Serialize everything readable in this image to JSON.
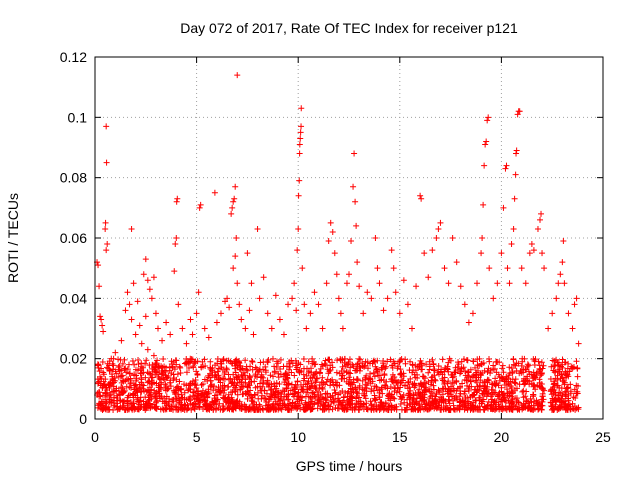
{
  "chart_data": {
    "type": "scatter",
    "title": "Day 072 of 2017, Rate Of TEC Index for receiver p121",
    "xlabel": "GPS time / hours",
    "ylabel": "ROTI / TECUs",
    "xlim": [
      0,
      25
    ],
    "ylim": [
      0,
      0.12
    ],
    "x_ticks": [
      0,
      5,
      10,
      15,
      20,
      25
    ],
    "x_tick_labels": [
      "0",
      "5",
      "10",
      "15",
      "20",
      "25"
    ],
    "y_ticks": [
      0,
      0.02,
      0.04,
      0.06,
      0.08,
      0.1,
      0.12
    ],
    "y_tick_labels": [
      "0",
      "0.02",
      "0.04",
      "0.06",
      "0.08",
      "0.1",
      "0.12"
    ],
    "grid": true,
    "legend": "none",
    "marker": "plus",
    "color": "#ff0000",
    "baseline_band": {
      "x_range": [
        0.1,
        23.8
      ],
      "y_range": [
        0.003,
        0.02
      ]
    },
    "points": [
      [
        0.1,
        0.052
      ],
      [
        0.15,
        0.051
      ],
      [
        0.2,
        0.044
      ],
      [
        0.25,
        0.034
      ],
      [
        0.3,
        0.033
      ],
      [
        0.35,
        0.031
      ],
      [
        0.4,
        0.029
      ],
      [
        0.5,
        0.063
      ],
      [
        0.52,
        0.065
      ],
      [
        0.55,
        0.056
      ],
      [
        0.6,
        0.058
      ],
      [
        0.55,
        0.097
      ],
      [
        0.57,
        0.085
      ],
      [
        0.8,
        0.02
      ],
      [
        1.0,
        0.022
      ],
      [
        1.3,
        0.026
      ],
      [
        1.5,
        0.036
      ],
      [
        1.6,
        0.042
      ],
      [
        1.7,
        0.038
      ],
      [
        1.8,
        0.033
      ],
      [
        1.9,
        0.045
      ],
      [
        2.0,
        0.028
      ],
      [
        2.1,
        0.039
      ],
      [
        2.2,
        0.031
      ],
      [
        1.8,
        0.063
      ],
      [
        2.4,
        0.048
      ],
      [
        2.5,
        0.053
      ],
      [
        2.6,
        0.046
      ],
      [
        2.7,
        0.043
      ],
      [
        2.8,
        0.04
      ],
      [
        2.9,
        0.047
      ],
      [
        3.0,
        0.035
      ],
      [
        2.5,
        0.034
      ],
      [
        2.3,
        0.025
      ],
      [
        2.6,
        0.023
      ],
      [
        2.9,
        0.021
      ],
      [
        3.1,
        0.03
      ],
      [
        3.3,
        0.026
      ],
      [
        3.5,
        0.032
      ],
      [
        3.7,
        0.028
      ],
      [
        3.9,
        0.049
      ],
      [
        3.95,
        0.058
      ],
      [
        4.0,
        0.06
      ],
      [
        4.02,
        0.072
      ],
      [
        4.05,
        0.073
      ],
      [
        4.1,
        0.038
      ],
      [
        4.3,
        0.03
      ],
      [
        4.5,
        0.025
      ],
      [
        4.7,
        0.033
      ],
      [
        4.8,
        0.028
      ],
      [
        5.0,
        0.035
      ],
      [
        5.1,
        0.042
      ],
      [
        5.15,
        0.07
      ],
      [
        5.2,
        0.071
      ],
      [
        5.4,
        0.03
      ],
      [
        5.6,
        0.027
      ],
      [
        5.9,
        0.075
      ],
      [
        6.0,
        0.032
      ],
      [
        6.2,
        0.035
      ],
      [
        6.4,
        0.039
      ],
      [
        6.5,
        0.04
      ],
      [
        6.6,
        0.037
      ],
      [
        6.7,
        0.068
      ],
      [
        6.75,
        0.07
      ],
      [
        6.8,
        0.072
      ],
      [
        6.85,
        0.073
      ],
      [
        6.9,
        0.077
      ],
      [
        6.95,
        0.06
      ],
      [
        7.0,
        0.114
      ],
      [
        6.8,
        0.05
      ],
      [
        6.9,
        0.054
      ],
      [
        7.0,
        0.045
      ],
      [
        7.1,
        0.038
      ],
      [
        7.2,
        0.033
      ],
      [
        7.4,
        0.03
      ],
      [
        7.6,
        0.036
      ],
      [
        7.8,
        0.028
      ],
      [
        7.5,
        0.055
      ],
      [
        7.7,
        0.045
      ],
      [
        8.0,
        0.063
      ],
      [
        8.1,
        0.04
      ],
      [
        8.3,
        0.047
      ],
      [
        8.5,
        0.035
      ],
      [
        8.7,
        0.03
      ],
      [
        8.9,
        0.041
      ],
      [
        9.1,
        0.033
      ],
      [
        9.3,
        0.028
      ],
      [
        9.5,
        0.038
      ],
      [
        9.7,
        0.04
      ],
      [
        9.8,
        0.045
      ],
      [
        9.9,
        0.036
      ],
      [
        9.95,
        0.056
      ],
      [
        10.0,
        0.063
      ],
      [
        10.02,
        0.074
      ],
      [
        10.05,
        0.079
      ],
      [
        10.07,
        0.088
      ],
      [
        10.08,
        0.091
      ],
      [
        10.1,
        0.093
      ],
      [
        10.12,
        0.095
      ],
      [
        10.14,
        0.097
      ],
      [
        10.15,
        0.103
      ],
      [
        10.2,
        0.05
      ],
      [
        10.3,
        0.038
      ],
      [
        10.4,
        0.03
      ],
      [
        10.6,
        0.035
      ],
      [
        10.8,
        0.042
      ],
      [
        11.0,
        0.038
      ],
      [
        11.2,
        0.03
      ],
      [
        11.4,
        0.045
      ],
      [
        11.5,
        0.059
      ],
      [
        11.6,
        0.065
      ],
      [
        11.7,
        0.062
      ],
      [
        11.8,
        0.055
      ],
      [
        11.9,
        0.048
      ],
      [
        12.0,
        0.04
      ],
      [
        12.1,
        0.035
      ],
      [
        12.2,
        0.03
      ],
      [
        12.4,
        0.045
      ],
      [
        12.5,
        0.048
      ],
      [
        12.6,
        0.059
      ],
      [
        12.7,
        0.077
      ],
      [
        12.75,
        0.088
      ],
      [
        12.8,
        0.072
      ],
      [
        12.85,
        0.064
      ],
      [
        12.9,
        0.052
      ],
      [
        13.0,
        0.044
      ],
      [
        13.2,
        0.035
      ],
      [
        13.4,
        0.042
      ],
      [
        13.6,
        0.04
      ],
      [
        13.8,
        0.06
      ],
      [
        13.9,
        0.05
      ],
      [
        14.0,
        0.045
      ],
      [
        14.2,
        0.036
      ],
      [
        14.4,
        0.04
      ],
      [
        14.6,
        0.056
      ],
      [
        14.7,
        0.05
      ],
      [
        14.8,
        0.042
      ],
      [
        15.0,
        0.035
      ],
      [
        15.2,
        0.046
      ],
      [
        15.4,
        0.038
      ],
      [
        15.6,
        0.03
      ],
      [
        15.8,
        0.044
      ],
      [
        16.0,
        0.074
      ],
      [
        16.05,
        0.073
      ],
      [
        16.2,
        0.055
      ],
      [
        16.4,
        0.047
      ],
      [
        16.6,
        0.056
      ],
      [
        16.8,
        0.06
      ],
      [
        16.9,
        0.063
      ],
      [
        17.0,
        0.065
      ],
      [
        17.2,
        0.05
      ],
      [
        17.4,
        0.045
      ],
      [
        17.6,
        0.06
      ],
      [
        17.8,
        0.052
      ],
      [
        18.0,
        0.044
      ],
      [
        18.2,
        0.038
      ],
      [
        18.4,
        0.032
      ],
      [
        18.6,
        0.035
      ],
      [
        18.8,
        0.045
      ],
      [
        19.0,
        0.055
      ],
      [
        19.05,
        0.06
      ],
      [
        19.1,
        0.071
      ],
      [
        19.15,
        0.084
      ],
      [
        19.2,
        0.091
      ],
      [
        19.25,
        0.092
      ],
      [
        19.3,
        0.099
      ],
      [
        19.35,
        0.1
      ],
      [
        19.4,
        0.05
      ],
      [
        19.6,
        0.04
      ],
      [
        19.8,
        0.045
      ],
      [
        20.0,
        0.055
      ],
      [
        20.1,
        0.07
      ],
      [
        20.2,
        0.083
      ],
      [
        20.25,
        0.084
      ],
      [
        20.3,
        0.05
      ],
      [
        20.4,
        0.045
      ],
      [
        20.5,
        0.058
      ],
      [
        20.6,
        0.063
      ],
      [
        20.65,
        0.073
      ],
      [
        20.7,
        0.081
      ],
      [
        20.72,
        0.088
      ],
      [
        20.75,
        0.089
      ],
      [
        20.8,
        0.101
      ],
      [
        20.85,
        0.102
      ],
      [
        20.9,
        0.102
      ],
      [
        21.0,
        0.05
      ],
      [
        21.2,
        0.045
      ],
      [
        21.4,
        0.055
      ],
      [
        21.5,
        0.058
      ],
      [
        21.6,
        0.056
      ],
      [
        21.8,
        0.063
      ],
      [
        21.9,
        0.066
      ],
      [
        21.95,
        0.068
      ],
      [
        22.0,
        0.055
      ],
      [
        22.1,
        0.05
      ],
      [
        22.3,
        0.03
      ],
      [
        22.5,
        0.035
      ],
      [
        22.7,
        0.04
      ],
      [
        22.8,
        0.045
      ],
      [
        22.9,
        0.048
      ],
      [
        23.0,
        0.052
      ],
      [
        23.05,
        0.059
      ],
      [
        23.1,
        0.045
      ],
      [
        23.3,
        0.035
      ],
      [
        23.5,
        0.03
      ],
      [
        23.6,
        0.038
      ],
      [
        23.7,
        0.04
      ],
      [
        23.8,
        0.025
      ]
    ]
  }
}
